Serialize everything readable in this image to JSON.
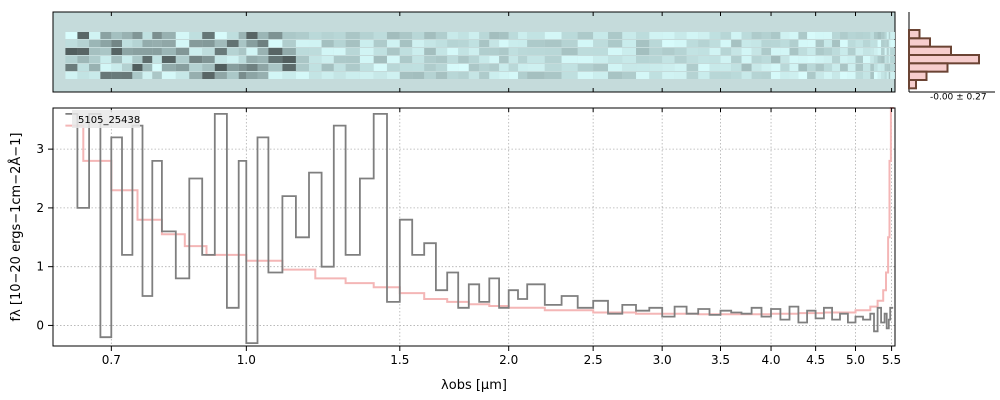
{
  "chart_data": {
    "type": "line",
    "title": "",
    "object_id": "5105_25438",
    "xlabel": "λobs [μm]",
    "ylabel": "fλ [10−20 ergs−1cm−2Å−1]",
    "xscale": "log",
    "xlim": [
      0.6,
      5.55
    ],
    "ylim": [
      -0.35,
      3.7
    ],
    "grid": true,
    "x_ticks": [
      0.7,
      1.0,
      1.5,
      2.0,
      2.5,
      3.0,
      3.5,
      4.0,
      4.5,
      5.0,
      5.5
    ],
    "x_tick_labels": [
      "0.7",
      "1.0",
      "1.5",
      "2.0",
      "2.5",
      "3.0",
      "3.5",
      "4.0",
      "4.5",
      "5.0",
      "5.5"
    ],
    "y_ticks": [
      0,
      1,
      2,
      3
    ],
    "y_tick_labels": [
      "0",
      "1",
      "2",
      "3"
    ],
    "histogram_label": "-0.00 ± 0.27",
    "colors": {
      "flux": "#7f7f7f",
      "error": "#f4b6b6",
      "spectrum2d_bg": "#c5dbdb",
      "hist": "#6b4434",
      "hist_fill": "#f4c0c0"
    },
    "series": [
      {
        "role": "flux",
        "x": [
          0.62,
          0.64,
          0.66,
          0.68,
          0.7,
          0.72,
          0.74,
          0.76,
          0.78,
          0.8,
          0.83,
          0.86,
          0.89,
          0.92,
          0.95,
          0.98,
          1.0,
          1.03,
          1.06,
          1.1,
          1.14,
          1.18,
          1.22,
          1.26,
          1.3,
          1.35,
          1.4,
          1.45,
          1.5,
          1.55,
          1.6,
          1.65,
          1.7,
          1.75,
          1.8,
          1.85,
          1.9,
          1.95,
          2.0,
          2.05,
          2.1,
          2.2,
          2.3,
          2.4,
          2.5,
          2.6,
          2.7,
          2.8,
          2.9,
          3.0,
          3.1,
          3.2,
          3.3,
          3.4,
          3.5,
          3.6,
          3.7,
          3.8,
          3.9,
          4.0,
          4.1,
          4.2,
          4.3,
          4.4,
          4.5,
          4.6,
          4.7,
          4.8,
          4.9,
          5.0,
          5.1,
          5.2,
          5.25,
          5.3,
          5.35,
          5.4,
          5.43,
          5.46,
          5.48
        ],
        "y": [
          3.6,
          2.0,
          3.6,
          -0.2,
          3.2,
          1.2,
          3.4,
          0.5,
          2.8,
          1.6,
          0.8,
          2.5,
          1.2,
          3.6,
          0.3,
          2.8,
          -0.3,
          3.2,
          0.9,
          2.2,
          1.5,
          2.6,
          1.0,
          3.4,
          1.2,
          2.5,
          3.6,
          0.4,
          1.8,
          1.2,
          1.4,
          0.6,
          0.9,
          0.3,
          0.7,
          0.4,
          0.8,
          0.3,
          0.6,
          0.45,
          0.7,
          0.35,
          0.5,
          0.3,
          0.42,
          0.2,
          0.35,
          0.25,
          0.3,
          0.15,
          0.32,
          0.2,
          0.28,
          0.18,
          0.25,
          0.22,
          0.2,
          0.3,
          0.15,
          0.28,
          0.1,
          0.32,
          0.05,
          0.25,
          0.12,
          0.3,
          0.1,
          0.2,
          0.05,
          0.15,
          0.1,
          0.2,
          -0.1,
          0.3,
          0.05,
          0.2,
          -0.05,
          0.1,
          0.3
        ]
      },
      {
        "role": "error",
        "x": [
          0.62,
          0.65,
          0.7,
          0.75,
          0.8,
          0.85,
          0.9,
          1.0,
          1.1,
          1.2,
          1.3,
          1.4,
          1.5,
          1.6,
          1.7,
          1.8,
          1.9,
          2.0,
          2.2,
          2.5,
          2.8,
          3.0,
          3.3,
          3.6,
          4.0,
          4.3,
          4.6,
          5.0,
          5.2,
          5.3,
          5.38,
          5.42,
          5.45,
          5.47,
          5.49
        ],
        "y": [
          3.4,
          2.8,
          2.3,
          1.8,
          1.55,
          1.35,
          1.2,
          1.1,
          0.95,
          0.8,
          0.72,
          0.65,
          0.55,
          0.45,
          0.4,
          0.36,
          0.33,
          0.3,
          0.26,
          0.22,
          0.2,
          0.2,
          0.19,
          0.19,
          0.2,
          0.21,
          0.22,
          0.26,
          0.32,
          0.42,
          0.6,
          0.9,
          1.5,
          2.8,
          3.7
        ]
      }
    ],
    "histogram": {
      "bins": [
        -0.9,
        -0.6,
        -0.3,
        0.0,
        0.3,
        0.6,
        0.9
      ],
      "counts": [
        0.15,
        0.3,
        0.6,
        1.0,
        0.55,
        0.25,
        0.1
      ]
    }
  }
}
